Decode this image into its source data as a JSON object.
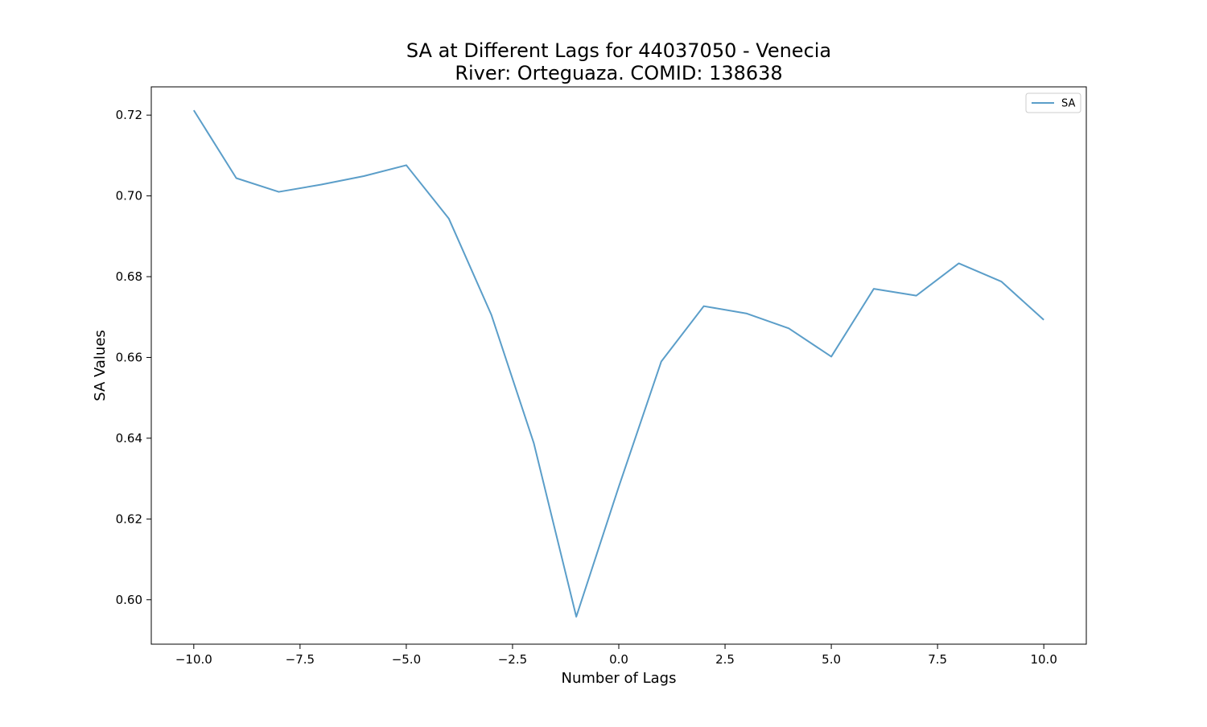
{
  "chart_data": {
    "type": "line",
    "title": "SA at Different Lags for 44037050 - Venecia",
    "subtitle": "River: Orteguaza. COMID: 138638",
    "xlabel": "Number of Lags",
    "ylabel": "SA Values",
    "xlim": [
      -11,
      11
    ],
    "ylim": [
      0.589,
      0.727
    ],
    "x_ticks": [
      -10.0,
      -7.5,
      -5.0,
      -2.5,
      0.0,
      2.5,
      5.0,
      7.5,
      10.0
    ],
    "x_tick_labels": [
      "−10.0",
      "−7.5",
      "−5.0",
      "−2.5",
      "0.0",
      "2.5",
      "5.0",
      "7.5",
      "10.0"
    ],
    "y_ticks": [
      0.6,
      0.62,
      0.64,
      0.66,
      0.68,
      0.7,
      0.72
    ],
    "y_tick_labels": [
      "0.60",
      "0.62",
      "0.64",
      "0.66",
      "0.68",
      "0.70",
      "0.72"
    ],
    "grid": false,
    "legend_position": "top-right",
    "series": [
      {
        "name": "SA",
        "color": "#5b9ec9",
        "x": [
          -10,
          -9,
          -8,
          -7,
          -6,
          -5,
          -4,
          -3,
          -2,
          -1,
          0,
          1,
          2,
          3,
          4,
          5,
          6,
          7,
          8,
          9,
          10
        ],
        "y": [
          0.7212,
          0.7044,
          0.701,
          0.7028,
          0.7049,
          0.7076,
          0.6944,
          0.6706,
          0.6388,
          0.5958,
          0.628,
          0.659,
          0.6727,
          0.6709,
          0.6672,
          0.6602,
          0.677,
          0.6753,
          0.6833,
          0.6788,
          0.6693
        ]
      }
    ]
  }
}
